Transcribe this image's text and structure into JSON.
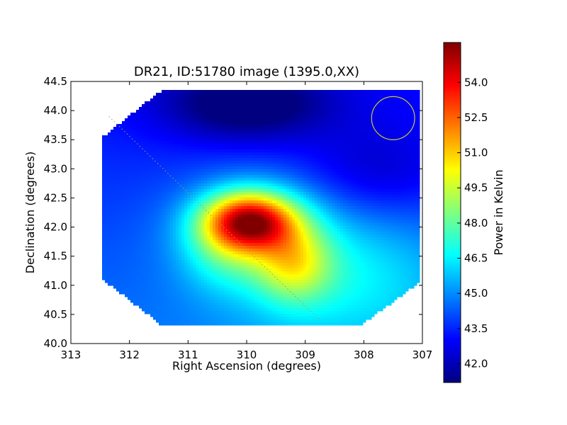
{
  "chart_data": {
    "type": "heatmap",
    "title": "DR21, ID:51780 image (1395.0,XX)",
    "xlabel": "Right Ascension (degrees)",
    "ylabel": "Declination (degrees)",
    "xlim": [
      313,
      307
    ],
    "ylim": [
      40.0,
      44.5
    ],
    "x_ticks": [
      "313",
      "312",
      "311",
      "310",
      "309",
      "308",
      "307"
    ],
    "y_ticks": [
      "40.0",
      "40.5",
      "41.0",
      "41.5",
      "42.0",
      "42.5",
      "43.0",
      "43.5",
      "44.0",
      "44.5"
    ],
    "colorbar": {
      "label": "Power in Kelvin",
      "colormap": "jet",
      "range": [
        41.2,
        55.7
      ],
      "ticks": [
        "42.0",
        "43.5",
        "45.0",
        "46.5",
        "48.0",
        "49.5",
        "51.0",
        "52.5",
        "54.0"
      ]
    },
    "map": {
      "footprint_vertices": [
        [
          311.45,
          44.35
        ],
        [
          307.05,
          44.35
        ],
        [
          307.05,
          43.55
        ],
        [
          307.05,
          41.05
        ],
        [
          308.05,
          40.32
        ],
        [
          311.45,
          40.32
        ],
        [
          312.45,
          41.1
        ],
        [
          312.45,
          43.55
        ]
      ],
      "baseline_level": 43.9,
      "gradient_top_level": 43.3,
      "gradient_bottom_level": 45.0,
      "components": [
        {
          "ra": 309.95,
          "dec": 42.1,
          "amplitude": 8.8,
          "sigma_ra": 0.55,
          "sigma_dec": 0.35
        },
        {
          "ra": 309.85,
          "dec": 41.95,
          "amplitude": 2.2,
          "sigma_ra": 0.9,
          "sigma_dec": 0.65
        },
        {
          "ra": 309.2,
          "dec": 41.35,
          "amplitude": 3.6,
          "sigma_ra": 0.45,
          "sigma_dec": 0.45
        },
        {
          "ra": 310.4,
          "dec": 41.6,
          "amplitude": 1.6,
          "sigma_ra": 0.5,
          "sigma_dec": 0.5
        },
        {
          "ra": 308.3,
          "dec": 41.2,
          "amplitude": 2.2,
          "sigma_ra": 1.3,
          "sigma_dec": 0.9
        },
        {
          "ra": 310.0,
          "dec": 44.1,
          "amplitude": -2.8,
          "sigma_ra": 1.0,
          "sigma_dec": 0.45
        },
        {
          "ra": 307.8,
          "dec": 42.9,
          "amplitude": -1.4,
          "sigma_ra": 0.9,
          "sigma_dec": 0.6
        }
      ]
    },
    "beam_circle": {
      "ra": 307.5,
      "dec": 43.87,
      "radius_deg": 0.37,
      "color": "#c8c832"
    },
    "trajectory": {
      "from": [
        312.35,
        43.9
      ],
      "to": [
        308.75,
        40.4
      ],
      "color": "#a0a060",
      "style": "dotted"
    }
  }
}
